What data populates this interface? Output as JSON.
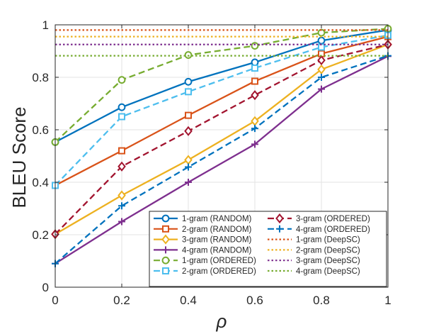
{
  "chart_data": {
    "type": "line",
    "title": "",
    "xlabel": "ρ",
    "ylabel": "BLEU Score",
    "xlim": [
      0,
      1
    ],
    "ylim": [
      0,
      1
    ],
    "xticks": [
      0,
      0.2,
      0.4,
      0.6,
      0.8,
      1
    ],
    "xtick_labels": [
      "0",
      "0.2",
      "0.4",
      "0.6",
      "0.8",
      "1"
    ],
    "yticks": [
      0,
      0.2,
      0.4,
      0.6,
      0.8,
      1
    ],
    "ytick_labels": [
      "0",
      "0.2",
      "0.4",
      "0.6",
      "0.8",
      "1"
    ],
    "grid": true,
    "legend_position": "bottom-right",
    "x": [
      0,
      0.2,
      0.4,
      0.6,
      0.8,
      1
    ],
    "series": [
      {
        "name": "1-gram (RANDOM)",
        "values": [
          0.553,
          0.686,
          0.783,
          0.857,
          0.94,
          0.98
        ],
        "color": "#0072BD",
        "dash": "solid",
        "marker": "circle"
      },
      {
        "name": "2-gram (RANDOM)",
        "values": [
          0.388,
          0.52,
          0.655,
          0.785,
          0.89,
          0.955
        ],
        "color": "#D95319",
        "dash": "solid",
        "marker": "square"
      },
      {
        "name": "3-gram (RANDOM)",
        "values": [
          0.202,
          0.35,
          0.485,
          0.633,
          0.83,
          0.925
        ],
        "color": "#EDB120",
        "dash": "solid",
        "marker": "diamond"
      },
      {
        "name": "4-gram (RANDOM)",
        "values": [
          0.09,
          0.25,
          0.4,
          0.545,
          0.755,
          0.88
        ],
        "color": "#7E2F8E",
        "dash": "solid",
        "marker": "plus"
      },
      {
        "name": "1-gram (ORDERED)",
        "values": [
          0.553,
          0.79,
          0.885,
          0.92,
          0.97,
          0.985
        ],
        "color": "#77AC30",
        "dash": "dashed",
        "marker": "circle"
      },
      {
        "name": "2-gram (ORDERED)",
        "values": [
          0.388,
          0.65,
          0.745,
          0.835,
          0.915,
          0.96
        ],
        "color": "#4DBEEE",
        "dash": "dashed",
        "marker": "square"
      },
      {
        "name": "3-gram (ORDERED)",
        "values": [
          0.202,
          0.46,
          0.595,
          0.732,
          0.865,
          0.925
        ],
        "color": "#A2142F",
        "dash": "dashed",
        "marker": "diamond"
      },
      {
        "name": "4-gram (ORDERED)",
        "values": [
          0.09,
          0.31,
          0.458,
          0.605,
          0.8,
          0.882
        ],
        "color": "#0072BD",
        "dash": "dashed",
        "marker": "plus"
      },
      {
        "name": "1-gram (DeepSC)",
        "values": [
          0.98,
          0.98,
          0.98,
          0.98,
          0.98,
          0.98
        ],
        "color": "#D95319",
        "dash": "dotted",
        "marker": "none"
      },
      {
        "name": "2-gram (DeepSC)",
        "values": [
          0.955,
          0.955,
          0.955,
          0.955,
          0.955,
          0.955
        ],
        "color": "#EDB120",
        "dash": "dotted",
        "marker": "none"
      },
      {
        "name": "3-gram (DeepSC)",
        "values": [
          0.925,
          0.925,
          0.925,
          0.925,
          0.925,
          0.925
        ],
        "color": "#7E2F8E",
        "dash": "dotted",
        "marker": "none"
      },
      {
        "name": "4-gram (DeepSC)",
        "values": [
          0.882,
          0.882,
          0.882,
          0.882,
          0.882,
          0.882
        ],
        "color": "#77AC30",
        "dash": "dotted",
        "marker": "none"
      }
    ]
  }
}
